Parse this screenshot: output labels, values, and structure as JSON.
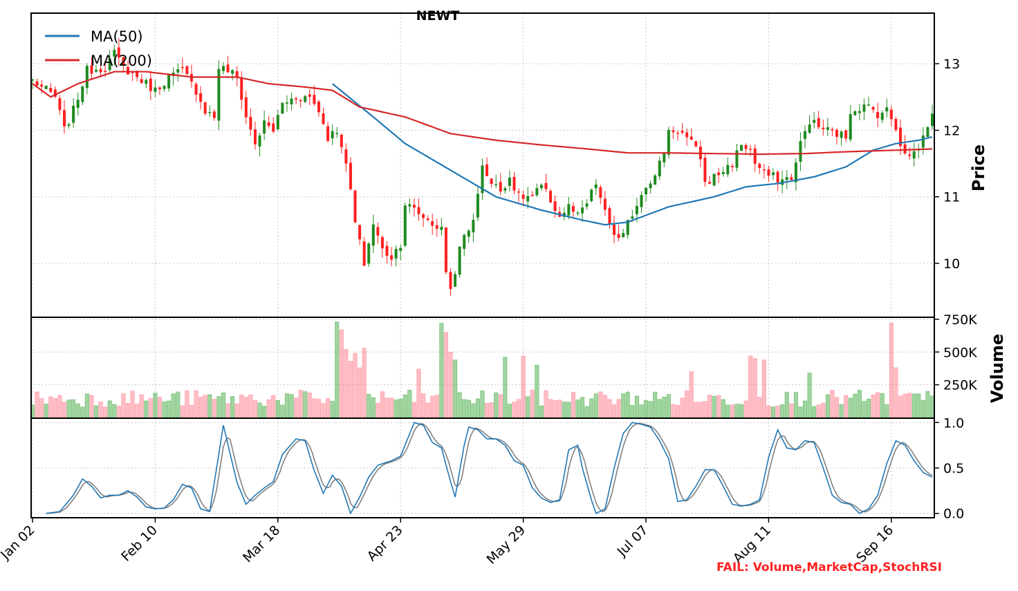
{
  "chart_data": {
    "type": "candlestick",
    "title": "NEWT",
    "x_tick_labels": [
      "Jan 02",
      "Feb 10",
      "Mar 18",
      "Apr 23",
      "May 29",
      "Jul 07",
      "Aug 11",
      "Sep 16"
    ],
    "x_tick_index": [
      0,
      27,
      54,
      81,
      108,
      135,
      162,
      189
    ],
    "n_bars": 199,
    "price_panel": {
      "ylabel": "Price",
      "ylim": [
        9.2,
        13.75
      ],
      "yticks": [
        10,
        11,
        12,
        13
      ],
      "close_anchors": [
        [
          0,
          12.75
        ],
        [
          5,
          12.5
        ],
        [
          7,
          12.0
        ],
        [
          9,
          12.3
        ],
        [
          12,
          12.9
        ],
        [
          16,
          12.95
        ],
        [
          18,
          13.15
        ],
        [
          20,
          12.95
        ],
        [
          24,
          12.75
        ],
        [
          27,
          12.6
        ],
        [
          30,
          12.8
        ],
        [
          33,
          12.9
        ],
        [
          36,
          12.6
        ],
        [
          38,
          12.3
        ],
        [
          40,
          12.2
        ],
        [
          41,
          12.95
        ],
        [
          43,
          12.9
        ],
        [
          45,
          12.8
        ],
        [
          47,
          12.2
        ],
        [
          49,
          11.8
        ],
        [
          51,
          12.1
        ],
        [
          53,
          12.0
        ],
        [
          55,
          12.4
        ],
        [
          58,
          12.5
        ],
        [
          61,
          12.5
        ],
        [
          63,
          12.3
        ],
        [
          65,
          11.9
        ],
        [
          67,
          12.0
        ],
        [
          68,
          11.8
        ],
        [
          70,
          11.1
        ],
        [
          71,
          10.6
        ],
        [
          73,
          10.0
        ],
        [
          75,
          10.6
        ],
        [
          77,
          10.2
        ],
        [
          79,
          10.1
        ],
        [
          81,
          10.3
        ],
        [
          82,
          10.9
        ],
        [
          84,
          10.8
        ],
        [
          86,
          10.7
        ],
        [
          88,
          10.6
        ],
        [
          90,
          10.5
        ],
        [
          91,
          9.9
        ],
        [
          92,
          9.6
        ],
        [
          93,
          9.9
        ],
        [
          94,
          10.2
        ],
        [
          95,
          10.4
        ],
        [
          96,
          10.5
        ],
        [
          97,
          10.7
        ],
        [
          98,
          11.0
        ],
        [
          99,
          11.5
        ],
        [
          101,
          11.2
        ],
        [
          103,
          11.1
        ],
        [
          105,
          11.3
        ],
        [
          107,
          11.0
        ],
        [
          110,
          11.0
        ],
        [
          112,
          11.15
        ],
        [
          114,
          10.95
        ],
        [
          116,
          10.7
        ],
        [
          118,
          10.85
        ],
        [
          120,
          10.7
        ],
        [
          122,
          10.9
        ],
        [
          124,
          11.2
        ],
        [
          126,
          10.75
        ],
        [
          128,
          10.45
        ],
        [
          129,
          10.35
        ],
        [
          130,
          10.4
        ],
        [
          131,
          10.6
        ],
        [
          133,
          10.9
        ],
        [
          135,
          11.2
        ],
        [
          137,
          11.3
        ],
        [
          139,
          11.7
        ],
        [
          140,
          12.0
        ],
        [
          142,
          12.0
        ],
        [
          143,
          11.95
        ],
        [
          145,
          11.8
        ],
        [
          147,
          11.6
        ],
        [
          148,
          11.2
        ],
        [
          150,
          11.3
        ],
        [
          152,
          11.4
        ],
        [
          154,
          11.5
        ],
        [
          156,
          11.8
        ],
        [
          158,
          11.7
        ],
        [
          159,
          11.5
        ],
        [
          161,
          11.35
        ],
        [
          163,
          11.3
        ],
        [
          165,
          11.25
        ],
        [
          167,
          11.3
        ],
        [
          168,
          11.5
        ],
        [
          169,
          11.8
        ],
        [
          171,
          12.15
        ],
        [
          173,
          12.05
        ],
        [
          175,
          12.0
        ],
        [
          177,
          11.95
        ],
        [
          179,
          11.9
        ],
        [
          180,
          12.3
        ],
        [
          182,
          12.35
        ],
        [
          184,
          12.35
        ],
        [
          186,
          12.25
        ],
        [
          188,
          12.3
        ],
        [
          190,
          12.05
        ],
        [
          191,
          11.8
        ],
        [
          193,
          11.6
        ],
        [
          195,
          11.75
        ],
        [
          196,
          11.9
        ],
        [
          197,
          12.1
        ],
        [
          198,
          12.2
        ],
        [
          199,
          12.3
        ]
      ],
      "series": [
        {
          "name": "MA(50)",
          "color": "#1f77b4",
          "anchors": [
            [
              66,
              12.7
            ],
            [
              75,
              12.2
            ],
            [
              82,
              11.8
            ],
            [
              92,
              11.4
            ],
            [
              102,
              11.0
            ],
            [
              112,
              10.8
            ],
            [
              121,
              10.65
            ],
            [
              126,
              10.58
            ],
            [
              131,
              10.62
            ],
            [
              140,
              10.85
            ],
            [
              150,
              11.0
            ],
            [
              157,
              11.15
            ],
            [
              164,
              11.2
            ],
            [
              172,
              11.3
            ],
            [
              179,
              11.45
            ],
            [
              185,
              11.7
            ],
            [
              190,
              11.8
            ],
            [
              195,
              11.85
            ],
            [
              198,
              11.9
            ]
          ]
        },
        {
          "name": "MA(200)",
          "color": "#d62728",
          "anchors": [
            [
              0,
              12.7
            ],
            [
              4,
              12.5
            ],
            [
              10,
              12.7
            ],
            [
              18,
              12.88
            ],
            [
              25,
              12.88
            ],
            [
              35,
              12.8
            ],
            [
              45,
              12.8
            ],
            [
              52,
              12.7
            ],
            [
              60,
              12.65
            ],
            [
              66,
              12.6
            ],
            [
              72,
              12.35
            ],
            [
              82,
              12.2
            ],
            [
              92,
              11.95
            ],
            [
              102,
              11.85
            ],
            [
              112,
              11.78
            ],
            [
              122,
              11.72
            ],
            [
              131,
              11.66
            ],
            [
              140,
              11.66
            ],
            [
              150,
              11.65
            ],
            [
              160,
              11.64
            ],
            [
              170,
              11.65
            ],
            [
              180,
              11.68
            ],
            [
              190,
              11.7
            ],
            [
              198,
              11.72
            ]
          ]
        }
      ]
    },
    "volume_panel": {
      "ylabel": "Volume",
      "ylim": [
        0,
        760000
      ],
      "yticks": [
        250000,
        500000,
        750000
      ],
      "ytick_labels": [
        "250K",
        "500K",
        "750K"
      ],
      "up_color": "#2ca02c",
      "down_color": "#ff6b7d",
      "spikes": [
        [
          67,
          730000
        ],
        [
          68,
          670000
        ],
        [
          69,
          520000
        ],
        [
          70,
          430000
        ],
        [
          71,
          490000
        ],
        [
          72,
          380000
        ],
        [
          73,
          530000
        ],
        [
          85,
          370000
        ],
        [
          90,
          720000
        ],
        [
          91,
          650000
        ],
        [
          92,
          500000
        ],
        [
          93,
          440000
        ],
        [
          104,
          460000
        ],
        [
          108,
          470000
        ],
        [
          111,
          400000
        ],
        [
          145,
          350000
        ],
        [
          158,
          470000
        ],
        [
          159,
          450000
        ],
        [
          161,
          440000
        ],
        [
          171,
          340000
        ],
        [
          189,
          720000
        ],
        [
          190,
          380000
        ]
      ]
    },
    "stoch_panel": {
      "ylim": [
        -0.04,
        1.04
      ],
      "yticks": [
        0.0,
        0.5,
        1.0
      ],
      "ytick_labels": [
        "0.0",
        "0.5",
        "1.0"
      ],
      "k_color": "#1f77b4",
      "d_color": "#808080",
      "k_anchors": [
        [
          3,
          0.0
        ],
        [
          6,
          0.02
        ],
        [
          9,
          0.2
        ],
        [
          11,
          0.38
        ],
        [
          13,
          0.3
        ],
        [
          15,
          0.17
        ],
        [
          17,
          0.2
        ],
        [
          19,
          0.2
        ],
        [
          21,
          0.25
        ],
        [
          23,
          0.18
        ],
        [
          25,
          0.07
        ],
        [
          27,
          0.05
        ],
        [
          29,
          0.06
        ],
        [
          31,
          0.15
        ],
        [
          33,
          0.32
        ],
        [
          35,
          0.28
        ],
        [
          37,
          0.05
        ],
        [
          39,
          0.02
        ],
        [
          42,
          0.97
        ],
        [
          45,
          0.34
        ],
        [
          47,
          0.1
        ],
        [
          49,
          0.2
        ],
        [
          51,
          0.28
        ],
        [
          53,
          0.35
        ],
        [
          55,
          0.65
        ],
        [
          58,
          0.82
        ],
        [
          60,
          0.8
        ],
        [
          62,
          0.47
        ],
        [
          64,
          0.22
        ],
        [
          66,
          0.42
        ],
        [
          68,
          0.3
        ],
        [
          70,
          0.0
        ],
        [
          72,
          0.18
        ],
        [
          74,
          0.4
        ],
        [
          76,
          0.53
        ],
        [
          79,
          0.58
        ],
        [
          81,
          0.63
        ],
        [
          84,
          1.0
        ],
        [
          86,
          0.97
        ],
        [
          88,
          0.78
        ],
        [
          90,
          0.72
        ],
        [
          92,
          0.35
        ],
        [
          93,
          0.18
        ],
        [
          95,
          0.75
        ],
        [
          96,
          0.95
        ],
        [
          98,
          0.92
        ],
        [
          100,
          0.82
        ],
        [
          102,
          0.82
        ],
        [
          104,
          0.75
        ],
        [
          106,
          0.58
        ],
        [
          108,
          0.53
        ],
        [
          110,
          0.28
        ],
        [
          112,
          0.17
        ],
        [
          114,
          0.12
        ],
        [
          116,
          0.15
        ],
        [
          118,
          0.7
        ],
        [
          120,
          0.75
        ],
        [
          121,
          0.5
        ],
        [
          123,
          0.15
        ],
        [
          124,
          0.0
        ],
        [
          126,
          0.05
        ],
        [
          128,
          0.5
        ],
        [
          130,
          0.88
        ],
        [
          132,
          1.0
        ],
        [
          134,
          0.98
        ],
        [
          136,
          0.95
        ],
        [
          138,
          0.8
        ],
        [
          140,
          0.6
        ],
        [
          142,
          0.13
        ],
        [
          144,
          0.15
        ],
        [
          146,
          0.3
        ],
        [
          148,
          0.48
        ],
        [
          150,
          0.48
        ],
        [
          152,
          0.3
        ],
        [
          154,
          0.1
        ],
        [
          156,
          0.08
        ],
        [
          158,
          0.1
        ],
        [
          160,
          0.15
        ],
        [
          162,
          0.62
        ],
        [
          164,
          0.92
        ],
        [
          166,
          0.72
        ],
        [
          168,
          0.7
        ],
        [
          170,
          0.8
        ],
        [
          172,
          0.78
        ],
        [
          174,
          0.5
        ],
        [
          176,
          0.2
        ],
        [
          178,
          0.12
        ],
        [
          180,
          0.1
        ],
        [
          182,
          0.0
        ],
        [
          184,
          0.05
        ],
        [
          186,
          0.2
        ],
        [
          188,
          0.55
        ],
        [
          190,
          0.8
        ],
        [
          192,
          0.75
        ],
        [
          194,
          0.58
        ],
        [
          196,
          0.45
        ],
        [
          198,
          0.4
        ]
      ],
      "d_lag": 1.5
    },
    "legend": {
      "position": "top-left",
      "entries": [
        "MA(50)",
        "MA(200)"
      ]
    },
    "grid": true,
    "annotation": {
      "text": "FAIL: Volume,MarketCap,StochRSI",
      "color": "#ff2222"
    }
  }
}
